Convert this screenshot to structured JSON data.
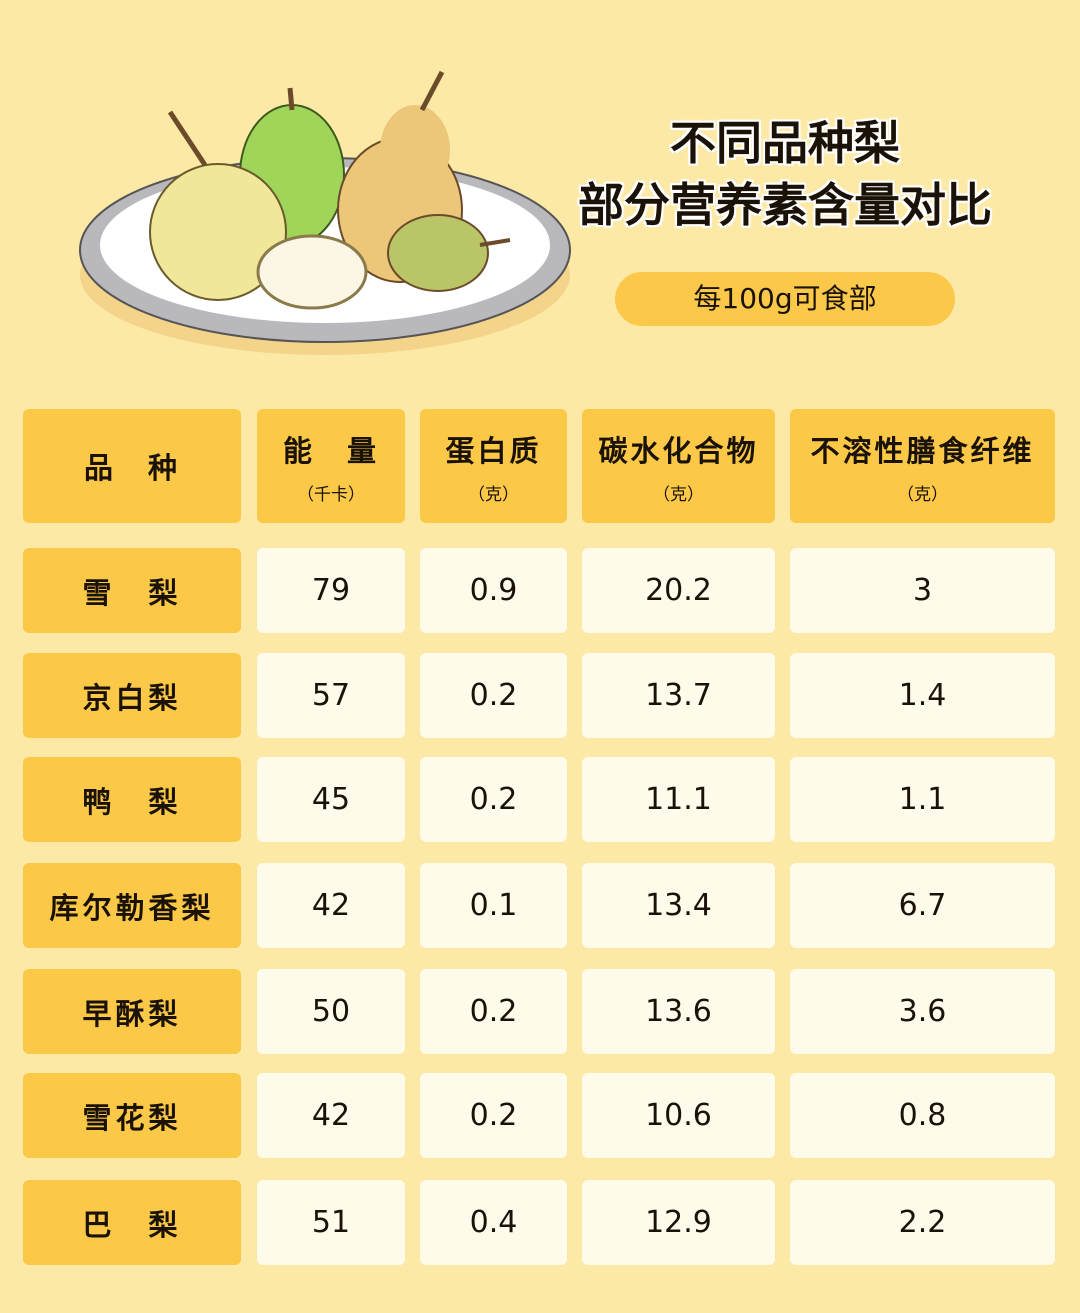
{
  "title_line1": "不同品种梨",
  "title_line2": "部分营养素含量对比",
  "subtitle": "每100g可食部",
  "colors": {
    "background": "#fde9a6",
    "header": "#fbc847",
    "value_cell": "#fffbeb"
  },
  "table": {
    "headers": [
      {
        "label": "品　种",
        "unit": ""
      },
      {
        "label": "能　量",
        "unit": "（千卡）"
      },
      {
        "label": "蛋白质",
        "unit": "（克）"
      },
      {
        "label": "碳水化合物",
        "unit": "（克）"
      },
      {
        "label": "不溶性膳食纤维",
        "unit": "（克）"
      }
    ],
    "rows": [
      [
        "雪　梨",
        "79",
        "0.9",
        "20.2",
        "3"
      ],
      [
        "京白梨",
        "57",
        "0.2",
        "13.7",
        "1.4"
      ],
      [
        "鸭　梨",
        "45",
        "0.2",
        "11.1",
        "1.1"
      ],
      [
        "库尔勒香梨",
        "42",
        "0.1",
        "13.4",
        "6.7"
      ],
      [
        "早酥梨",
        "50",
        "0.2",
        "13.6",
        "3.6"
      ],
      [
        "雪花梨",
        "42",
        "0.2",
        "10.6",
        "0.8"
      ],
      [
        "巴　梨",
        "51",
        "0.4",
        "12.9",
        "2.2"
      ]
    ]
  }
}
